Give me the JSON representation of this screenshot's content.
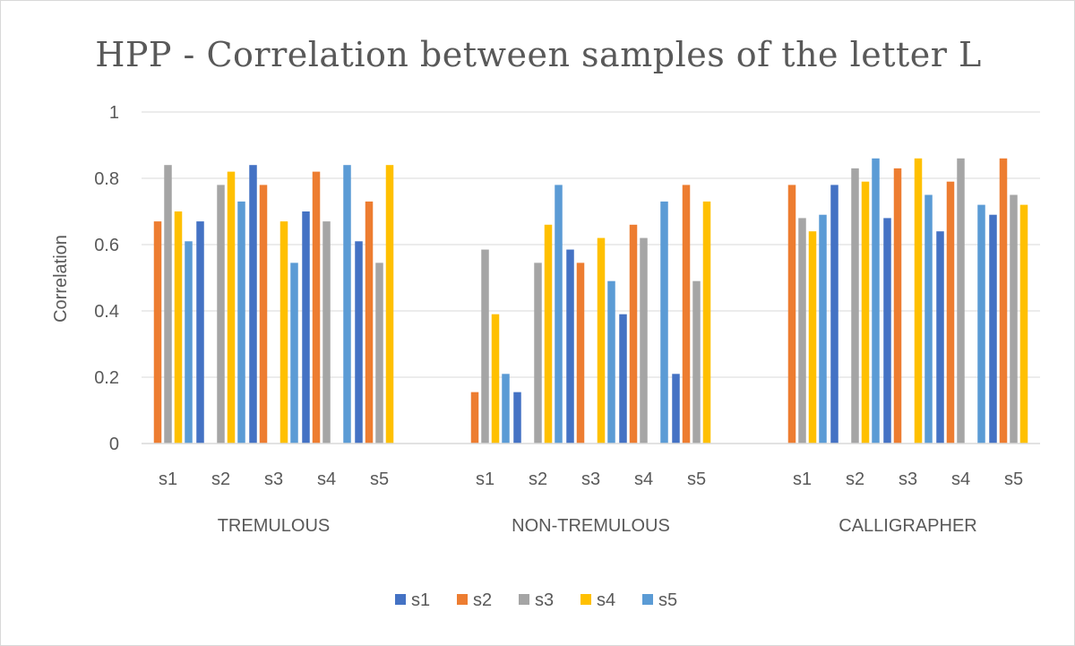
{
  "chart_data": {
    "type": "bar",
    "title": "HPP - Correlation between samples of the letter L",
    "xlabel": "",
    "ylabel": "Correlation",
    "ylim": [
      0,
      1
    ],
    "yticks": [
      "0",
      "0.2",
      "0.4",
      "0.6",
      "0.8",
      "1"
    ],
    "grid": true,
    "legend_position": "bottom",
    "groups": [
      {
        "name": "TREMULOUS",
        "categories": [
          "s1",
          "s2",
          "s3",
          "s4",
          "s5"
        ],
        "series": [
          {
            "name": "s1",
            "values": [
              0,
              0.67,
              0.84,
              0.7,
              0.61
            ]
          },
          {
            "name": "s2",
            "values": [
              0.67,
              0,
              0.78,
              0.82,
              0.73
            ]
          },
          {
            "name": "s3",
            "values": [
              0.84,
              0.78,
              0,
              0.67,
              0.545
            ]
          },
          {
            "name": "s4",
            "values": [
              0.7,
              0.82,
              0.67,
              0,
              0.84
            ]
          },
          {
            "name": "s5",
            "values": [
              0.61,
              0.73,
              0.545,
              0.84,
              0
            ]
          }
        ]
      },
      {
        "name": "NON-TREMULOUS",
        "categories": [
          "s1",
          "s2",
          "s3",
          "s4",
          "s5"
        ],
        "series": [
          {
            "name": "s1",
            "values": [
              0,
              0.155,
              0.585,
              0.39,
              0.21
            ]
          },
          {
            "name": "s2",
            "values": [
              0.155,
              0,
              0.545,
              0.66,
              0.78
            ]
          },
          {
            "name": "s3",
            "values": [
              0.585,
              0.545,
              0,
              0.62,
              0.49
            ]
          },
          {
            "name": "s4",
            "values": [
              0.39,
              0.66,
              0.62,
              0,
              0.73
            ]
          },
          {
            "name": "s5",
            "values": [
              0.21,
              0.78,
              0.49,
              0.73,
              0
            ]
          }
        ]
      },
      {
        "name": "CALLIGRAPHER",
        "categories": [
          "s1",
          "s2",
          "s3",
          "s4",
          "s5"
        ],
        "series": [
          {
            "name": "s1",
            "values": [
              0,
              0.78,
              0.68,
              0.64,
              0.69
            ]
          },
          {
            "name": "s2",
            "values": [
              0.78,
              0,
              0.83,
              0.79,
              0.86
            ]
          },
          {
            "name": "s3",
            "values": [
              0.68,
              0.83,
              0,
              0.86,
              0.75
            ]
          },
          {
            "name": "s4",
            "values": [
              0.64,
              0.79,
              0.86,
              0,
              0.72
            ]
          },
          {
            "name": "s5",
            "values": [
              0.69,
              0.86,
              0.75,
              0.72,
              0
            ]
          }
        ]
      }
    ],
    "colors": {
      "s1": "#4472c4",
      "s2": "#ed7d31",
      "s3": "#a5a5a5",
      "s4": "#ffc000",
      "s5": "#5b9bd5",
      "grid": "#d9d9d9",
      "axis": "#d9d9d9"
    }
  }
}
